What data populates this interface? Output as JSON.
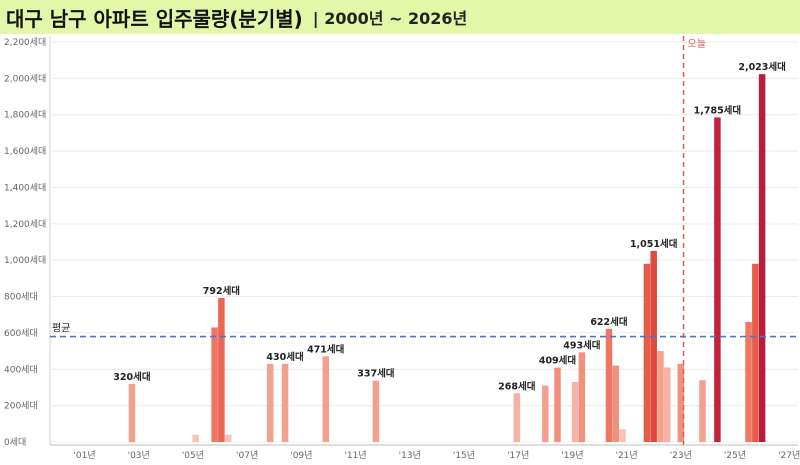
{
  "title": {
    "main": "대구 남구 아파트 입주물량(분기별)",
    "sub": "| 2000년 ~ 2026년"
  },
  "chart_data": {
    "type": "bar",
    "title": "대구 남구 아파트 입주물량(분기별)",
    "subtitle": "| 2000년 ~ 2026년",
    "xlabel": "",
    "ylabel": "",
    "ylim": [
      0,
      2200
    ],
    "grid": true,
    "y_ticks": [
      "0세대",
      "200세대",
      "400세대",
      "600세대",
      "800세대",
      "1,000세대",
      "1,200세대",
      "1,400세대",
      "1,600세대",
      "1,800세대",
      "2,000세대",
      "2,200세대"
    ],
    "x_ticks": [
      "'01년",
      "'03년",
      "'05년",
      "'07년",
      "'09년",
      "'11년",
      "'13년",
      "'15년",
      "'17년",
      "'19년",
      "'21년",
      "'23년",
      "'25년",
      "'27년"
    ],
    "average": {
      "label": "평균",
      "value": 580
    },
    "today": {
      "label": "오늘",
      "x": 2023.6
    },
    "bars": [
      {
        "x": 2003.25,
        "value": 320,
        "color": "#f4a08f",
        "label": "320세대"
      },
      {
        "x": 2005.6,
        "value": 40,
        "color": "#fac2b4"
      },
      {
        "x": 2006.3,
        "value": 630,
        "color": "#ee7663"
      },
      {
        "x": 2006.55,
        "value": 792,
        "color": "#ea6655",
        "label": "792세대"
      },
      {
        "x": 2006.8,
        "value": 40,
        "color": "#fac2b4"
      },
      {
        "x": 2008.35,
        "value": 430,
        "color": "#f4a08f"
      },
      {
        "x": 2008.9,
        "value": 430,
        "color": "#f4a08f",
        "label": "430세대"
      },
      {
        "x": 2010.4,
        "value": 471,
        "color": "#f4a08f",
        "label": "471세대"
      },
      {
        "x": 2012.25,
        "value": 337,
        "color": "#f4a08f",
        "label": "337세대"
      },
      {
        "x": 2017.45,
        "value": 268,
        "color": "#f7b2a4",
        "label": "268세대"
      },
      {
        "x": 2018.5,
        "value": 310,
        "color": "#f4a08f"
      },
      {
        "x": 2018.95,
        "value": 409,
        "color": "#f2907e",
        "label": "409세대"
      },
      {
        "x": 2019.6,
        "value": 330,
        "color": "#f7b2a4"
      },
      {
        "x": 2019.85,
        "value": 493,
        "color": "#f2907e",
        "label": "493세대"
      },
      {
        "x": 2020.85,
        "value": 622,
        "color": "#ee7663",
        "label": "622세대"
      },
      {
        "x": 2021.1,
        "value": 420,
        "color": "#f2907e"
      },
      {
        "x": 2021.35,
        "value": 70,
        "color": "#fac2b4"
      },
      {
        "x": 2022.25,
        "value": 980,
        "color": "#e85b49"
      },
      {
        "x": 2022.5,
        "value": 1051,
        "color": "#e04a3c",
        "label": "1,051세대"
      },
      {
        "x": 2022.75,
        "value": 500,
        "color": "#f4a08f"
      },
      {
        "x": 2023.0,
        "value": 410,
        "color": "#f7b2a4"
      },
      {
        "x": 2023.5,
        "value": 430,
        "color": "#f2907e"
      },
      {
        "x": 2024.3,
        "value": 340,
        "color": "#f4a08f"
      },
      {
        "x": 2024.85,
        "value": 1785,
        "color": "#c2223a",
        "label": "1,785세대"
      },
      {
        "x": 2026.0,
        "value": 660,
        "color": "#ee7663"
      },
      {
        "x": 2026.25,
        "value": 980,
        "color": "#e85b49"
      },
      {
        "x": 2026.5,
        "value": 2023,
        "color": "#b81e3c",
        "label": "2,023세대"
      }
    ],
    "colors": {
      "grid": "#ececec",
      "average": "#4a72d9",
      "today": "#e05555"
    }
  }
}
